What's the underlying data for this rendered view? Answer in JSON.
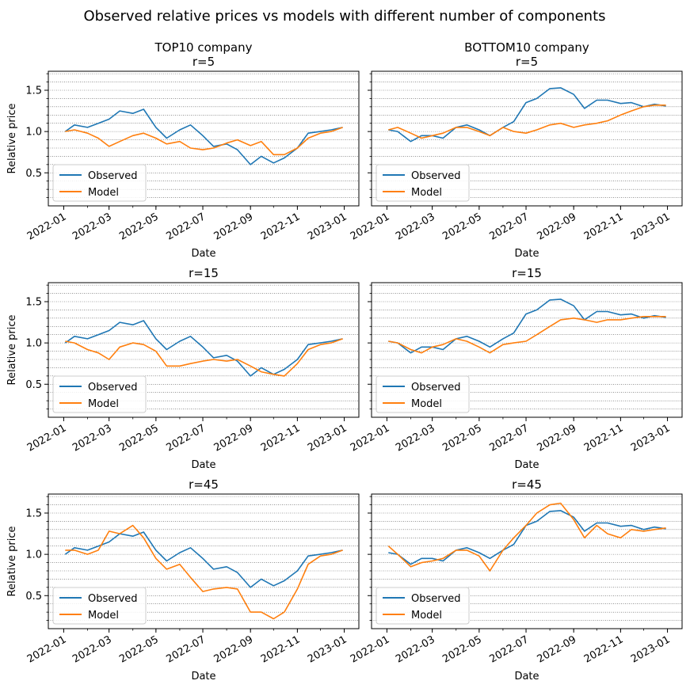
{
  "figure": {
    "title": "Observed relative prices vs models with different number of components"
  },
  "chart_data": [
    {
      "type": "line",
      "title_lines": [
        "TOP10 company",
        "r=5"
      ],
      "xlabel": "Date",
      "ylabel": "Relative price",
      "xlim": [
        "2021-12-12",
        "2023-01-20"
      ],
      "ylim": [
        0.1,
        1.73
      ],
      "xticks": [
        "2022-01",
        "2022-03",
        "2022-05",
        "2022-07",
        "2022-09",
        "2022-11",
        "2023-01"
      ],
      "yticks": [
        0.5,
        1.0,
        1.5
      ],
      "grid": "horizontal minor, dotted",
      "legend_position": "lower-left",
      "series": [
        {
          "name": "Observed",
          "color": "#1f77b4",
          "dates": [
            "2022-01-03",
            "2022-01-15",
            "2022-02-01",
            "2022-02-15",
            "2022-03-01",
            "2022-03-15",
            "2022-04-01",
            "2022-04-15",
            "2022-05-01",
            "2022-05-15",
            "2022-06-01",
            "2022-06-15",
            "2022-07-01",
            "2022-07-15",
            "2022-08-01",
            "2022-08-15",
            "2022-09-01",
            "2022-09-15",
            "2022-10-01",
            "2022-10-15",
            "2022-11-01",
            "2022-11-15",
            "2022-12-01",
            "2022-12-15",
            "2022-12-30"
          ],
          "values": [
            1.0,
            1.08,
            1.05,
            1.1,
            1.15,
            1.25,
            1.22,
            1.27,
            1.05,
            0.92,
            1.02,
            1.08,
            0.95,
            0.82,
            0.85,
            0.78,
            0.6,
            0.7,
            0.62,
            0.68,
            0.8,
            0.98,
            1.0,
            1.02,
            1.05
          ]
        },
        {
          "name": "Model",
          "color": "#ff7f0e",
          "dates": [
            "2022-01-03",
            "2022-01-15",
            "2022-02-01",
            "2022-02-15",
            "2022-03-01",
            "2022-03-15",
            "2022-04-01",
            "2022-04-15",
            "2022-05-01",
            "2022-05-15",
            "2022-06-01",
            "2022-06-15",
            "2022-07-01",
            "2022-07-15",
            "2022-08-01",
            "2022-08-15",
            "2022-09-01",
            "2022-09-15",
            "2022-10-01",
            "2022-10-15",
            "2022-11-01",
            "2022-11-15",
            "2022-12-01",
            "2022-12-15",
            "2022-12-30"
          ],
          "values": [
            1.0,
            1.02,
            0.98,
            0.92,
            0.82,
            0.88,
            0.95,
            0.98,
            0.92,
            0.85,
            0.88,
            0.8,
            0.78,
            0.8,
            0.86,
            0.9,
            0.83,
            0.88,
            0.72,
            0.72,
            0.8,
            0.92,
            0.98,
            1.0,
            1.05
          ]
        }
      ]
    },
    {
      "type": "line",
      "title_lines": [
        "BOTTOM10 company",
        "r=5"
      ],
      "xlabel": "Date",
      "ylabel": "",
      "xlim": [
        "2021-12-12",
        "2023-01-20"
      ],
      "ylim": [
        0.1,
        1.73
      ],
      "xticks": [
        "2022-01",
        "2022-03",
        "2022-05",
        "2022-07",
        "2022-09",
        "2022-11",
        "2023-01"
      ],
      "yticks": [
        0.5,
        1.0,
        1.5
      ],
      "grid": "horizontal minor, dotted",
      "legend_position": "lower-left",
      "series": [
        {
          "name": "Observed",
          "color": "#1f77b4",
          "dates": [
            "2022-01-03",
            "2022-01-15",
            "2022-02-01",
            "2022-02-15",
            "2022-03-01",
            "2022-03-15",
            "2022-04-01",
            "2022-04-15",
            "2022-05-01",
            "2022-05-15",
            "2022-06-01",
            "2022-06-15",
            "2022-07-01",
            "2022-07-15",
            "2022-08-01",
            "2022-08-15",
            "2022-09-01",
            "2022-09-15",
            "2022-10-01",
            "2022-10-15",
            "2022-11-01",
            "2022-11-15",
            "2022-12-01",
            "2022-12-15",
            "2022-12-30"
          ],
          "values": [
            1.02,
            1.0,
            0.88,
            0.95,
            0.95,
            0.92,
            1.05,
            1.08,
            1.02,
            0.95,
            1.05,
            1.12,
            1.35,
            1.4,
            1.52,
            1.53,
            1.45,
            1.28,
            1.38,
            1.38,
            1.34,
            1.35,
            1.3,
            1.33,
            1.31
          ]
        },
        {
          "name": "Model",
          "color": "#ff7f0e",
          "dates": [
            "2022-01-03",
            "2022-01-15",
            "2022-02-01",
            "2022-02-15",
            "2022-03-01",
            "2022-03-15",
            "2022-04-01",
            "2022-04-15",
            "2022-05-01",
            "2022-05-15",
            "2022-06-01",
            "2022-06-15",
            "2022-07-01",
            "2022-07-15",
            "2022-08-01",
            "2022-08-15",
            "2022-09-01",
            "2022-09-15",
            "2022-10-01",
            "2022-10-15",
            "2022-11-01",
            "2022-11-15",
            "2022-12-01",
            "2022-12-15",
            "2022-12-30"
          ],
          "values": [
            1.02,
            1.05,
            0.98,
            0.92,
            0.95,
            0.98,
            1.05,
            1.05,
            1.0,
            0.95,
            1.05,
            1.0,
            0.98,
            1.02,
            1.08,
            1.1,
            1.05,
            1.08,
            1.1,
            1.13,
            1.2,
            1.25,
            1.3,
            1.32,
            1.32
          ]
        }
      ]
    },
    {
      "type": "line",
      "title_lines": [
        "r=15"
      ],
      "xlabel": "Date",
      "ylabel": "Relative price",
      "xlim": [
        "2021-12-12",
        "2023-01-20"
      ],
      "ylim": [
        0.1,
        1.73
      ],
      "xticks": [
        "2022-01",
        "2022-03",
        "2022-05",
        "2022-07",
        "2022-09",
        "2022-11",
        "2023-01"
      ],
      "yticks": [
        0.5,
        1.0,
        1.5
      ],
      "grid": "horizontal minor, dotted",
      "legend_position": "lower-left",
      "series": [
        {
          "name": "Observed",
          "color": "#1f77b4",
          "dates": [
            "2022-01-03",
            "2022-01-15",
            "2022-02-01",
            "2022-02-15",
            "2022-03-01",
            "2022-03-15",
            "2022-04-01",
            "2022-04-15",
            "2022-05-01",
            "2022-05-15",
            "2022-06-01",
            "2022-06-15",
            "2022-07-01",
            "2022-07-15",
            "2022-08-01",
            "2022-08-15",
            "2022-09-01",
            "2022-09-15",
            "2022-10-01",
            "2022-10-15",
            "2022-11-01",
            "2022-11-15",
            "2022-12-01",
            "2022-12-15",
            "2022-12-30"
          ],
          "values": [
            1.0,
            1.08,
            1.05,
            1.1,
            1.15,
            1.25,
            1.22,
            1.27,
            1.05,
            0.92,
            1.02,
            1.08,
            0.95,
            0.82,
            0.85,
            0.78,
            0.6,
            0.7,
            0.62,
            0.68,
            0.8,
            0.98,
            1.0,
            1.02,
            1.05
          ]
        },
        {
          "name": "Model",
          "color": "#ff7f0e",
          "dates": [
            "2022-01-03",
            "2022-01-15",
            "2022-02-01",
            "2022-02-15",
            "2022-03-01",
            "2022-03-15",
            "2022-04-01",
            "2022-04-15",
            "2022-05-01",
            "2022-05-15",
            "2022-06-01",
            "2022-06-15",
            "2022-07-01",
            "2022-07-15",
            "2022-08-01",
            "2022-08-15",
            "2022-09-01",
            "2022-09-15",
            "2022-10-01",
            "2022-10-15",
            "2022-11-01",
            "2022-11-15",
            "2022-12-01",
            "2022-12-15",
            "2022-12-30"
          ],
          "values": [
            1.02,
            1.0,
            0.92,
            0.88,
            0.8,
            0.95,
            1.0,
            0.98,
            0.9,
            0.72,
            0.72,
            0.75,
            0.78,
            0.8,
            0.78,
            0.8,
            0.72,
            0.65,
            0.62,
            0.6,
            0.75,
            0.92,
            0.98,
            1.0,
            1.05
          ]
        }
      ]
    },
    {
      "type": "line",
      "title_lines": [
        "r=15"
      ],
      "xlabel": "Date",
      "ylabel": "",
      "xlim": [
        "2021-12-12",
        "2023-01-20"
      ],
      "ylim": [
        0.1,
        1.73
      ],
      "xticks": [
        "2022-01",
        "2022-03",
        "2022-05",
        "2022-07",
        "2022-09",
        "2022-11",
        "2023-01"
      ],
      "yticks": [
        0.5,
        1.0,
        1.5
      ],
      "grid": "horizontal minor, dotted",
      "legend_position": "lower-left",
      "series": [
        {
          "name": "Observed",
          "color": "#1f77b4",
          "dates": [
            "2022-01-03",
            "2022-01-15",
            "2022-02-01",
            "2022-02-15",
            "2022-03-01",
            "2022-03-15",
            "2022-04-01",
            "2022-04-15",
            "2022-05-01",
            "2022-05-15",
            "2022-06-01",
            "2022-06-15",
            "2022-07-01",
            "2022-07-15",
            "2022-08-01",
            "2022-08-15",
            "2022-09-01",
            "2022-09-15",
            "2022-10-01",
            "2022-10-15",
            "2022-11-01",
            "2022-11-15",
            "2022-12-01",
            "2022-12-15",
            "2022-12-30"
          ],
          "values": [
            1.02,
            1.0,
            0.88,
            0.95,
            0.95,
            0.92,
            1.05,
            1.08,
            1.02,
            0.95,
            1.05,
            1.12,
            1.35,
            1.4,
            1.52,
            1.53,
            1.45,
            1.28,
            1.38,
            1.38,
            1.34,
            1.35,
            1.3,
            1.33,
            1.31
          ]
        },
        {
          "name": "Model",
          "color": "#ff7f0e",
          "dates": [
            "2022-01-03",
            "2022-01-15",
            "2022-02-01",
            "2022-02-15",
            "2022-03-01",
            "2022-03-15",
            "2022-04-01",
            "2022-04-15",
            "2022-05-01",
            "2022-05-15",
            "2022-06-01",
            "2022-06-15",
            "2022-07-01",
            "2022-07-15",
            "2022-08-01",
            "2022-08-15",
            "2022-09-01",
            "2022-09-15",
            "2022-10-01",
            "2022-10-15",
            "2022-11-01",
            "2022-11-15",
            "2022-12-01",
            "2022-12-15",
            "2022-12-30"
          ],
          "values": [
            1.02,
            1.0,
            0.92,
            0.88,
            0.95,
            0.98,
            1.05,
            1.02,
            0.95,
            0.88,
            0.98,
            1.0,
            1.02,
            1.1,
            1.2,
            1.28,
            1.3,
            1.28,
            1.25,
            1.28,
            1.28,
            1.3,
            1.32,
            1.32,
            1.32
          ]
        }
      ]
    },
    {
      "type": "line",
      "title_lines": [
        "r=45"
      ],
      "xlabel": "Date",
      "ylabel": "Relative price",
      "xlim": [
        "2021-12-12",
        "2023-01-20"
      ],
      "ylim": [
        0.1,
        1.73
      ],
      "xticks": [
        "2022-01",
        "2022-03",
        "2022-05",
        "2022-07",
        "2022-09",
        "2022-11",
        "2023-01"
      ],
      "yticks": [
        0.5,
        1.0,
        1.5
      ],
      "grid": "horizontal minor, dotted",
      "legend_position": "lower-left",
      "series": [
        {
          "name": "Observed",
          "color": "#1f77b4",
          "dates": [
            "2022-01-03",
            "2022-01-15",
            "2022-02-01",
            "2022-02-15",
            "2022-03-01",
            "2022-03-15",
            "2022-04-01",
            "2022-04-15",
            "2022-05-01",
            "2022-05-15",
            "2022-06-01",
            "2022-06-15",
            "2022-07-01",
            "2022-07-15",
            "2022-08-01",
            "2022-08-15",
            "2022-09-01",
            "2022-09-15",
            "2022-10-01",
            "2022-10-15",
            "2022-11-01",
            "2022-11-15",
            "2022-12-01",
            "2022-12-15",
            "2022-12-30"
          ],
          "values": [
            1.0,
            1.08,
            1.05,
            1.1,
            1.15,
            1.25,
            1.22,
            1.27,
            1.05,
            0.92,
            1.02,
            1.08,
            0.95,
            0.82,
            0.85,
            0.78,
            0.6,
            0.7,
            0.62,
            0.68,
            0.8,
            0.98,
            1.0,
            1.02,
            1.05
          ]
        },
        {
          "name": "Model",
          "color": "#ff7f0e",
          "dates": [
            "2022-01-03",
            "2022-01-15",
            "2022-02-01",
            "2022-02-15",
            "2022-03-01",
            "2022-03-15",
            "2022-04-01",
            "2022-04-15",
            "2022-05-01",
            "2022-05-15",
            "2022-06-01",
            "2022-06-15",
            "2022-07-01",
            "2022-07-15",
            "2022-08-01",
            "2022-08-15",
            "2022-09-01",
            "2022-09-15",
            "2022-10-01",
            "2022-10-15",
            "2022-11-01",
            "2022-11-15",
            "2022-12-01",
            "2022-12-15",
            "2022-12-30"
          ],
          "values": [
            1.05,
            1.05,
            1.0,
            1.05,
            1.28,
            1.25,
            1.35,
            1.2,
            0.95,
            0.82,
            0.88,
            0.72,
            0.55,
            0.58,
            0.6,
            0.58,
            0.3,
            0.3,
            0.22,
            0.3,
            0.58,
            0.88,
            0.98,
            1.0,
            1.05
          ]
        }
      ]
    },
    {
      "type": "line",
      "title_lines": [
        "r=45"
      ],
      "xlabel": "Date",
      "ylabel": "",
      "xlim": [
        "2021-12-12",
        "2023-01-20"
      ],
      "ylim": [
        0.1,
        1.73
      ],
      "xticks": [
        "2022-01",
        "2022-03",
        "2022-05",
        "2022-07",
        "2022-09",
        "2022-11",
        "2023-01"
      ],
      "yticks": [
        0.5,
        1.0,
        1.5
      ],
      "grid": "horizontal minor, dotted",
      "legend_position": "lower-left",
      "series": [
        {
          "name": "Observed",
          "color": "#1f77b4",
          "dates": [
            "2022-01-03",
            "2022-01-15",
            "2022-02-01",
            "2022-02-15",
            "2022-03-01",
            "2022-03-15",
            "2022-04-01",
            "2022-04-15",
            "2022-05-01",
            "2022-05-15",
            "2022-06-01",
            "2022-06-15",
            "2022-07-01",
            "2022-07-15",
            "2022-08-01",
            "2022-08-15",
            "2022-09-01",
            "2022-09-15",
            "2022-10-01",
            "2022-10-15",
            "2022-11-01",
            "2022-11-15",
            "2022-12-01",
            "2022-12-15",
            "2022-12-30"
          ],
          "values": [
            1.02,
            1.0,
            0.88,
            0.95,
            0.95,
            0.92,
            1.05,
            1.08,
            1.02,
            0.95,
            1.05,
            1.12,
            1.35,
            1.4,
            1.52,
            1.53,
            1.45,
            1.28,
            1.38,
            1.38,
            1.34,
            1.35,
            1.3,
            1.33,
            1.31
          ]
        },
        {
          "name": "Model",
          "color": "#ff7f0e",
          "dates": [
            "2022-01-03",
            "2022-01-15",
            "2022-02-01",
            "2022-02-15",
            "2022-03-01",
            "2022-03-15",
            "2022-04-01",
            "2022-04-15",
            "2022-05-01",
            "2022-05-15",
            "2022-06-01",
            "2022-06-15",
            "2022-07-01",
            "2022-07-15",
            "2022-08-01",
            "2022-08-15",
            "2022-09-01",
            "2022-09-15",
            "2022-10-01",
            "2022-10-15",
            "2022-11-01",
            "2022-11-15",
            "2022-12-01",
            "2022-12-15",
            "2022-12-30"
          ],
          "values": [
            1.1,
            1.0,
            0.85,
            0.9,
            0.92,
            0.95,
            1.05,
            1.05,
            0.98,
            0.8,
            1.05,
            1.2,
            1.35,
            1.5,
            1.6,
            1.62,
            1.42,
            1.2,
            1.35,
            1.25,
            1.2,
            1.3,
            1.28,
            1.3,
            1.32
          ]
        }
      ]
    }
  ]
}
